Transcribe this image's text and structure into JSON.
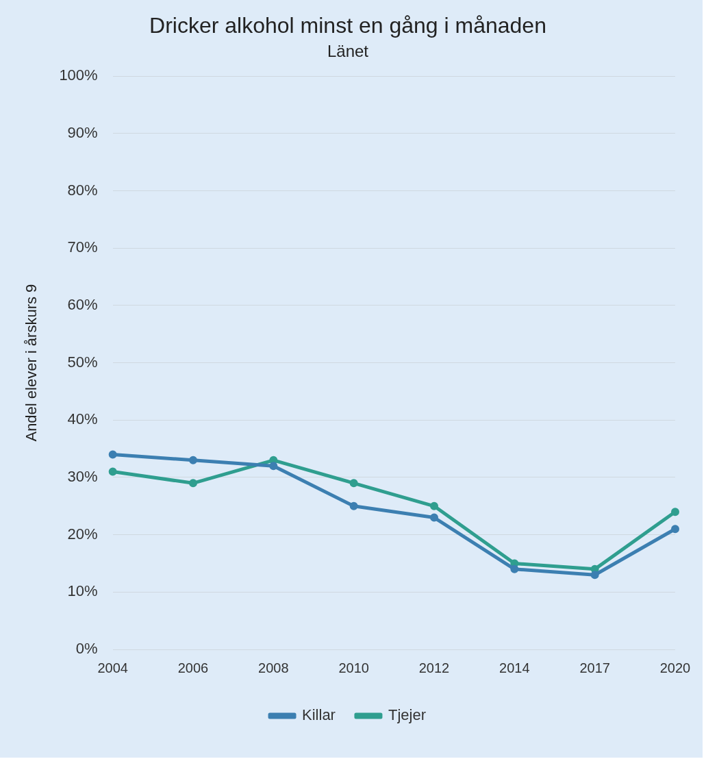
{
  "chart_data": {
    "type": "line",
    "title": "Dricker alkohol minst en gång i månaden",
    "subtitle": "Länet",
    "ylabel": "Andel elever i årskurs 9",
    "categories": [
      "2004",
      "2006",
      "2008",
      "2010",
      "2012",
      "2014",
      "2017",
      "2020"
    ],
    "series": [
      {
        "name": "Killar",
        "color": "#3c7fb1",
        "values": [
          34,
          33,
          32,
          25,
          23,
          14,
          13,
          21
        ]
      },
      {
        "name": "Tjejer",
        "color": "#2f9e8f",
        "values": [
          31,
          29,
          33,
          29,
          25,
          15,
          14,
          24
        ]
      }
    ],
    "ylim": [
      0,
      100
    ],
    "yticks": [
      {
        "value": 0,
        "label": "0%"
      },
      {
        "value": 10,
        "label": "10%"
      },
      {
        "value": 20,
        "label": "20%"
      },
      {
        "value": 30,
        "label": "30%"
      },
      {
        "value": 40,
        "label": "40%"
      },
      {
        "value": 50,
        "label": "50%"
      },
      {
        "value": 60,
        "label": "60%"
      },
      {
        "value": 70,
        "label": "70%"
      },
      {
        "value": 80,
        "label": "80%"
      },
      {
        "value": 90,
        "label": "90%"
      },
      {
        "value": 100,
        "label": "100%"
      }
    ],
    "grid": "y",
    "legend": "bottom",
    "marker": "circle",
    "line_style": "solid"
  }
}
